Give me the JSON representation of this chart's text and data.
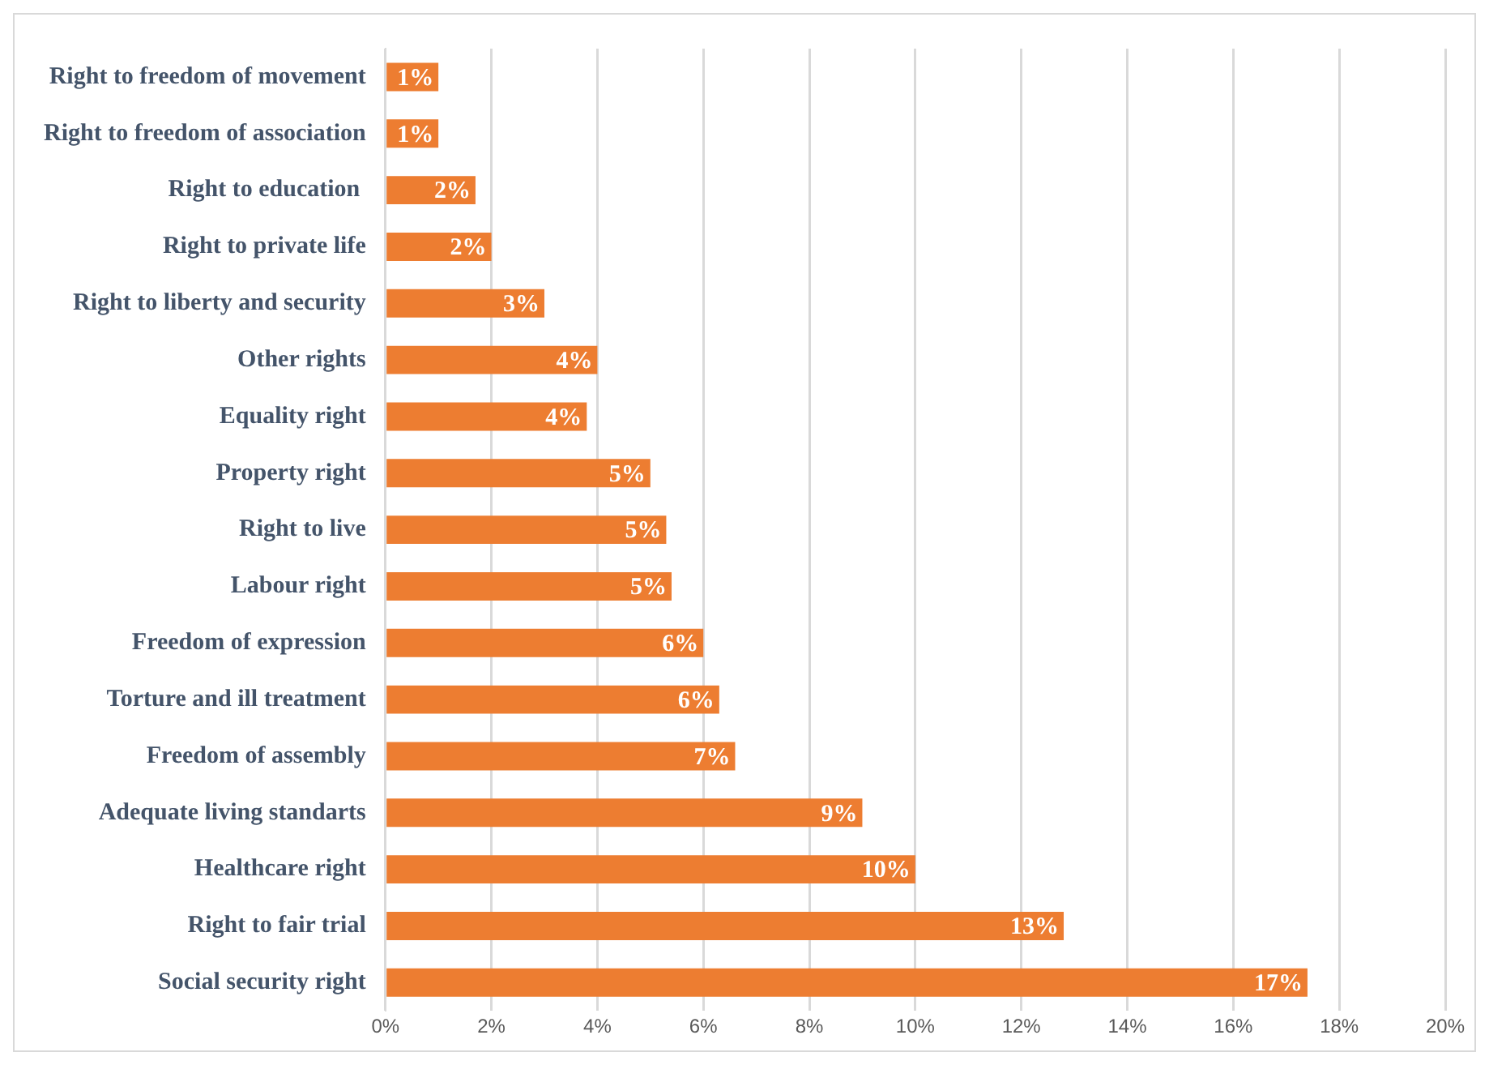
{
  "chart_data": {
    "type": "bar",
    "orientation": "horizontal",
    "categories": [
      "Right to freedom of movement",
      "Right to freedom of association",
      "Right to education ",
      "Right to private life",
      "Right to liberty and security",
      "Other rights",
      "Equality right",
      "Property right",
      "Right to live",
      "Labour right",
      "Freedom of expression",
      "Torture and ill treatment",
      "Freedom of assembly",
      "Adequate living standarts",
      "Healthcare right",
      "Right to fair trial",
      "Social security right"
    ],
    "values": [
      1.0,
      1.0,
      1.7,
      2.0,
      3.0,
      4.0,
      3.8,
      5.0,
      5.3,
      5.4,
      6.0,
      6.3,
      6.6,
      9.0,
      10.0,
      12.8,
      17.4
    ],
    "value_labels": [
      "1%",
      "1%",
      "2%",
      "2%",
      "3%",
      "4%",
      "4%",
      "5%",
      "5%",
      "5%",
      "6%",
      "6%",
      "7%",
      "9%",
      "10%",
      "13%",
      "17%"
    ],
    "color": "#ed7d31",
    "xlim": [
      0,
      20
    ],
    "xticks": [
      {
        "value": 0,
        "label": "0%"
      },
      {
        "value": 2,
        "label": "2%"
      },
      {
        "value": 4,
        "label": "4%"
      },
      {
        "value": 6,
        "label": "6%"
      },
      {
        "value": 8,
        "label": "8%"
      },
      {
        "value": 10,
        "label": "10%"
      },
      {
        "value": 12,
        "label": "12%"
      },
      {
        "value": 14,
        "label": "14%"
      },
      {
        "value": 16,
        "label": "16%"
      },
      {
        "value": 18,
        "label": "18%"
      },
      {
        "value": 20,
        "label": "20%"
      }
    ],
    "grid": "x",
    "legend": false
  }
}
